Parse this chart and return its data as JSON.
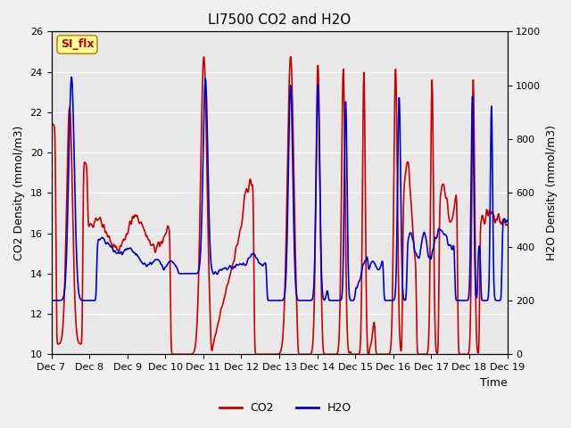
{
  "title": "LI7500 CO2 and H2O",
  "xlabel": "Time",
  "ylabel_left": "CO2 Density (mmol/m3)",
  "ylabel_right": "H2O Density (mmol/m3)",
  "ylim_left": [
    10,
    26
  ],
  "ylim_right": [
    0,
    1200
  ],
  "yticks_left": [
    10,
    12,
    14,
    16,
    18,
    20,
    22,
    24,
    26
  ],
  "yticks_right": [
    0,
    200,
    400,
    600,
    800,
    1000,
    1200
  ],
  "xtick_labels": [
    "Dec 7",
    "Dec 8",
    "Dec 9",
    "Dec 10",
    "Dec 11",
    "Dec 12",
    "Dec 13",
    "Dec 14",
    "Dec 15",
    "Dec 16",
    "Dec 17",
    "Dec 18",
    "Dec 19"
  ],
  "co2_color": "#cc0000",
  "h2o_color": "#0000cc",
  "bg_color": "#e8e8e8",
  "plot_bg": "#e8e8e8",
  "annotation_text": "SI_flx",
  "annotation_bg": "#ffff99",
  "annotation_border": "#cc8800",
  "legend_co2": "CO2",
  "legend_h2o": "H2O",
  "linewidth": 1.2
}
